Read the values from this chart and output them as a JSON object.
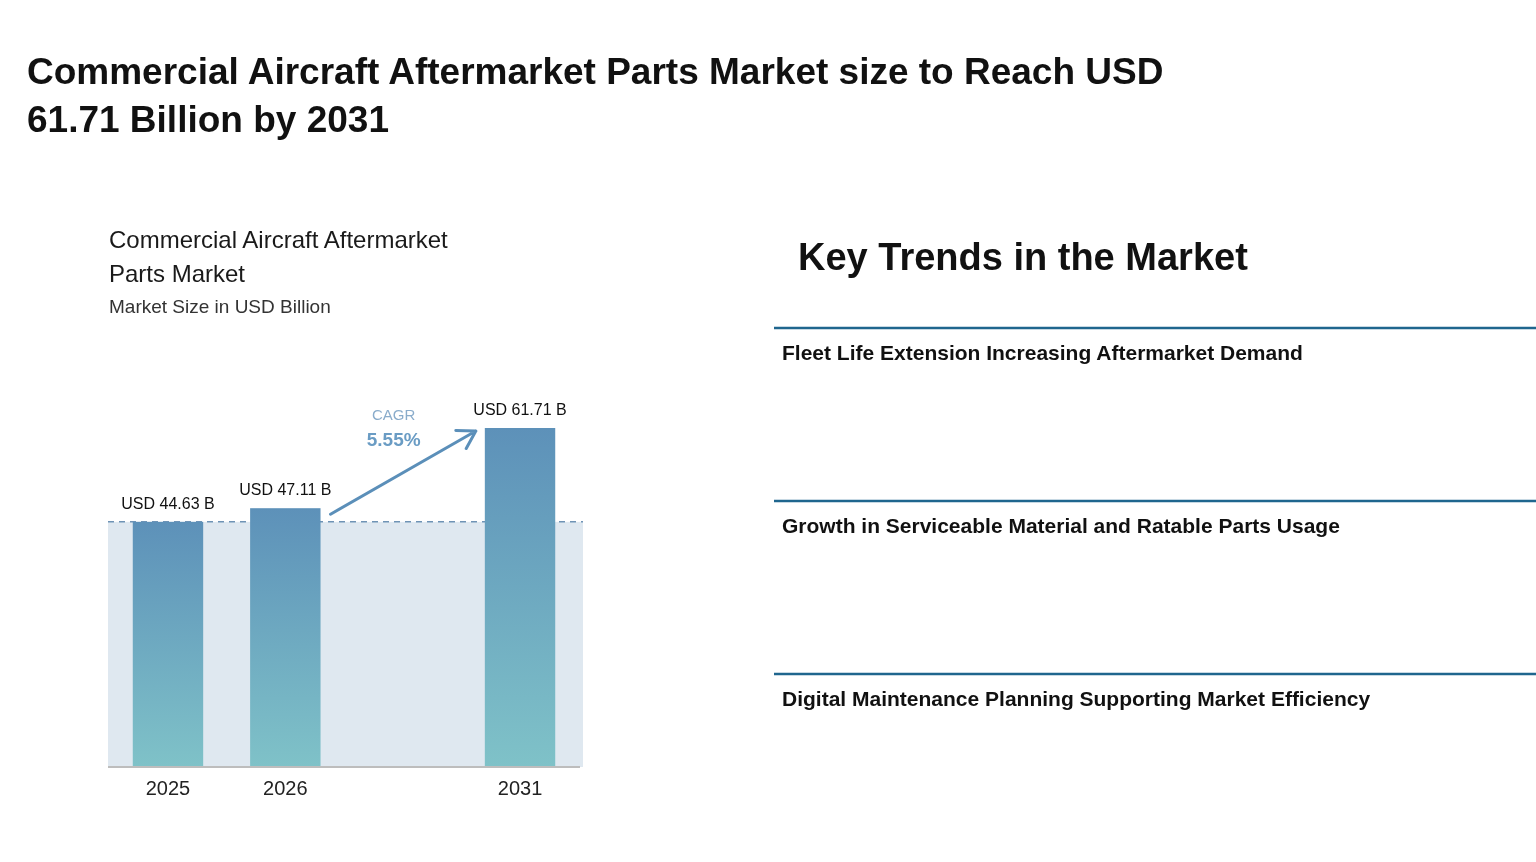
{
  "chart_data": [
    {
      "type": "other",
      "title": "Commercial Aircraft Aftermarket Parts Market size to Reach USD 61.71 Billion by 2031"
    },
    {
      "type": "bar",
      "title": "Commercial Aircraft Aftermarket Parts Market",
      "subtitle": "Market Size in USD Billion",
      "categories": [
        "2025",
        "2026",
        null,
        "2031"
      ],
      "values": [
        44.63,
        47.11,
        null,
        61.71
      ],
      "color": "#6a9fc0",
      "value_labels": [
        "USD 44.63 B",
        "USD 47.11 B",
        null,
        "USD 61.71 B"
      ],
      "tick_labels": "x",
      "ref_lines": [
        {
          "axis": "y",
          "value": 44.63,
          "color": "#6f93b5",
          "line_style": "dashed"
        }
      ],
      "bands": [
        {
          "axis": "y",
          "from": 0,
          "to": 44.63,
          "color": "#dfe8f0"
        }
      ],
      "annotations": [
        "CAGR",
        "5.55%"
      ]
    },
    {
      "type": "other",
      "title": "Key Trends in the Market",
      "annotations": [
        "Fleet Life Extension Increasing Aftermarket Demand",
        "Growth in Serviceable Material and Ratable Parts Usage",
        "Digital Maintenance Planning Supporting Market Efficiency"
      ]
    }
  ]
}
